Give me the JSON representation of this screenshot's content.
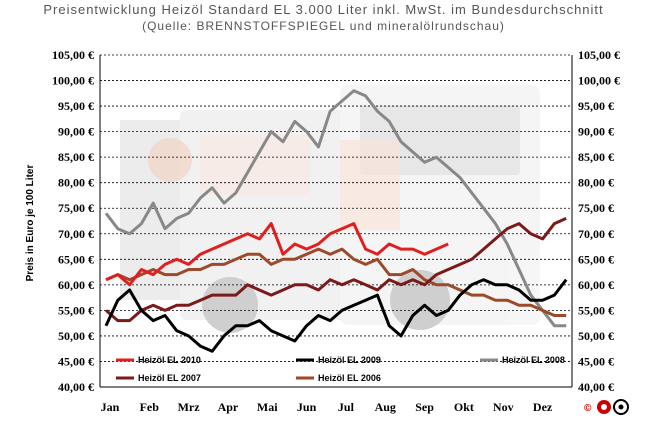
{
  "title": "Preisentwicklung Heizöl Standard EL 3.000 Liter inkl. MwSt. im Bundesdurchschnitt",
  "subtitle": "(Quelle: BRENNSTOFFSPIEGEL und mineralölrundschau)",
  "copyright_mark": "©",
  "chart_data": {
    "type": "line",
    "title": "Preisentwicklung Heizöl Standard EL 3.000 Liter inkl. MwSt. im Bundesdurchschnitt",
    "subtitle": "(Quelle: BRENNSTOFFSPIEGEL und mineralölrundschau)",
    "ylabel": "Preis in Euro je 100 Liter",
    "xlabel": "",
    "categories": [
      "Jan",
      "Feb",
      "Mrz",
      "Apr",
      "Mai",
      "Jun",
      "Jul",
      "Aug",
      "Sep",
      "Okt",
      "Nov",
      "Dez"
    ],
    "ylim": [
      40,
      105
    ],
    "yticks": [
      "40,00 €",
      "45,00 €",
      "50,00 €",
      "55,00 €",
      "60,00 €",
      "65,00 €",
      "70,00 €",
      "75,00 €",
      "80,00 €",
      "85,00 €",
      "90,00 €",
      "95,00 €",
      "100,00 €",
      "105,00 €"
    ],
    "ytick_values": [
      40,
      45,
      50,
      55,
      60,
      65,
      70,
      75,
      80,
      85,
      90,
      95,
      100,
      105
    ],
    "grid": "horizontal dotted",
    "legend_position": "bottom",
    "series": [
      {
        "name": "Heizöl EL 2010",
        "color": "#e02020",
        "x": [
          0.0,
          0.3,
          0.6,
          0.9,
          1.2,
          1.5,
          1.8,
          2.1,
          2.4,
          2.7,
          3.0,
          3.3,
          3.6,
          3.9,
          4.2,
          4.5,
          4.8,
          5.1,
          5.4,
          5.7,
          6.0,
          6.3,
          6.6,
          6.9,
          7.2,
          7.5,
          7.8,
          8.1,
          8.4,
          8.7
        ],
        "values": [
          61,
          62,
          60,
          63,
          62,
          64,
          65,
          64,
          66,
          67,
          68,
          69,
          70,
          69,
          72,
          66,
          68,
          67,
          68,
          70,
          71,
          72,
          67,
          66,
          68,
          67,
          67,
          66,
          67,
          68
        ]
      },
      {
        "name": "Heizöl EL 2009",
        "color": "#000000",
        "x": [
          0.0,
          0.3,
          0.6,
          0.9,
          1.2,
          1.5,
          1.8,
          2.1,
          2.4,
          2.7,
          3.0,
          3.3,
          3.6,
          3.9,
          4.2,
          4.5,
          4.8,
          5.1,
          5.4,
          5.7,
          6.0,
          6.3,
          6.6,
          6.9,
          7.2,
          7.5,
          7.8,
          8.1,
          8.4,
          8.7,
          9.0,
          9.3,
          9.6,
          9.9,
          10.2,
          10.5,
          10.8,
          11.1,
          11.4,
          11.7
        ],
        "values": [
          52,
          57,
          59,
          55,
          53,
          54,
          51,
          50,
          48,
          47,
          50,
          52,
          52,
          53,
          51,
          50,
          49,
          52,
          54,
          53,
          55,
          56,
          57,
          58,
          52,
          50,
          54,
          56,
          54,
          55,
          58,
          60,
          61,
          60,
          60,
          59,
          57,
          57,
          58,
          61
        ]
      },
      {
        "name": "Heizöl EL 2008",
        "color": "#888888",
        "x": [
          0.0,
          0.3,
          0.6,
          0.9,
          1.2,
          1.5,
          1.8,
          2.1,
          2.4,
          2.7,
          3.0,
          3.3,
          3.6,
          3.9,
          4.2,
          4.5,
          4.8,
          5.1,
          5.4,
          5.7,
          6.0,
          6.3,
          6.6,
          6.9,
          7.2,
          7.5,
          7.8,
          8.1,
          8.4,
          8.7,
          9.0,
          9.3,
          9.6,
          9.9,
          10.2,
          10.5,
          10.8,
          11.1,
          11.4,
          11.7
        ],
        "values": [
          74,
          71,
          70,
          72,
          76,
          71,
          73,
          74,
          77,
          79,
          76,
          78,
          82,
          86,
          90,
          88,
          92,
          90,
          87,
          94,
          96,
          98,
          97,
          94,
          92,
          88,
          86,
          84,
          85,
          83,
          81,
          78,
          75,
          72,
          68,
          63,
          58,
          55,
          52,
          52
        ]
      },
      {
        "name": "Heizöl EL 2007",
        "color": "#7a1a1a",
        "x": [
          0.0,
          0.3,
          0.6,
          0.9,
          1.2,
          1.5,
          1.8,
          2.1,
          2.4,
          2.7,
          3.0,
          3.3,
          3.6,
          3.9,
          4.2,
          4.5,
          4.8,
          5.1,
          5.4,
          5.7,
          6.0,
          6.3,
          6.6,
          6.9,
          7.2,
          7.5,
          7.8,
          8.1,
          8.4,
          8.7,
          9.0,
          9.3,
          9.6,
          9.9,
          10.2,
          10.5,
          10.8,
          11.1,
          11.4,
          11.7
        ],
        "values": [
          55,
          53,
          53,
          55,
          56,
          55,
          56,
          56,
          57,
          58,
          58,
          58,
          60,
          59,
          58,
          59,
          60,
          60,
          59,
          61,
          60,
          61,
          60,
          59,
          61,
          60,
          61,
          60,
          62,
          63,
          64,
          65,
          67,
          69,
          71,
          72,
          70,
          69,
          72,
          73
        ]
      },
      {
        "name": "Heizöl EL 2006",
        "color": "#9b4a2a",
        "x": [
          0.0,
          0.3,
          0.6,
          0.9,
          1.2,
          1.5,
          1.8,
          2.1,
          2.4,
          2.7,
          3.0,
          3.3,
          3.6,
          3.9,
          4.2,
          4.5,
          4.8,
          5.1,
          5.4,
          5.7,
          6.0,
          6.3,
          6.6,
          6.9,
          7.2,
          7.5,
          7.8,
          8.1,
          8.4,
          8.7,
          9.0,
          9.3,
          9.6,
          9.9,
          10.2,
          10.5,
          10.8,
          11.1,
          11.4,
          11.7
        ],
        "values": [
          61,
          62,
          61,
          62,
          63,
          62,
          62,
          63,
          63,
          64,
          64,
          65,
          66,
          66,
          64,
          65,
          65,
          66,
          67,
          66,
          67,
          65,
          64,
          65,
          62,
          62,
          63,
          61,
          60,
          60,
          59,
          58,
          58,
          57,
          57,
          56,
          56,
          55,
          54,
          54
        ]
      }
    ],
    "legend": [
      {
        "name": "Heizöl EL 2010",
        "color": "#e02020"
      },
      {
        "name": "Heizöl EL 2009",
        "color": "#000000"
      },
      {
        "name": "Heizöl EL 2008",
        "color": "#888888"
      },
      {
        "name": "Heizöl EL 2007",
        "color": "#7a1a1a"
      },
      {
        "name": "Heizöl EL 2006",
        "color": "#9b4a2a"
      }
    ]
  }
}
